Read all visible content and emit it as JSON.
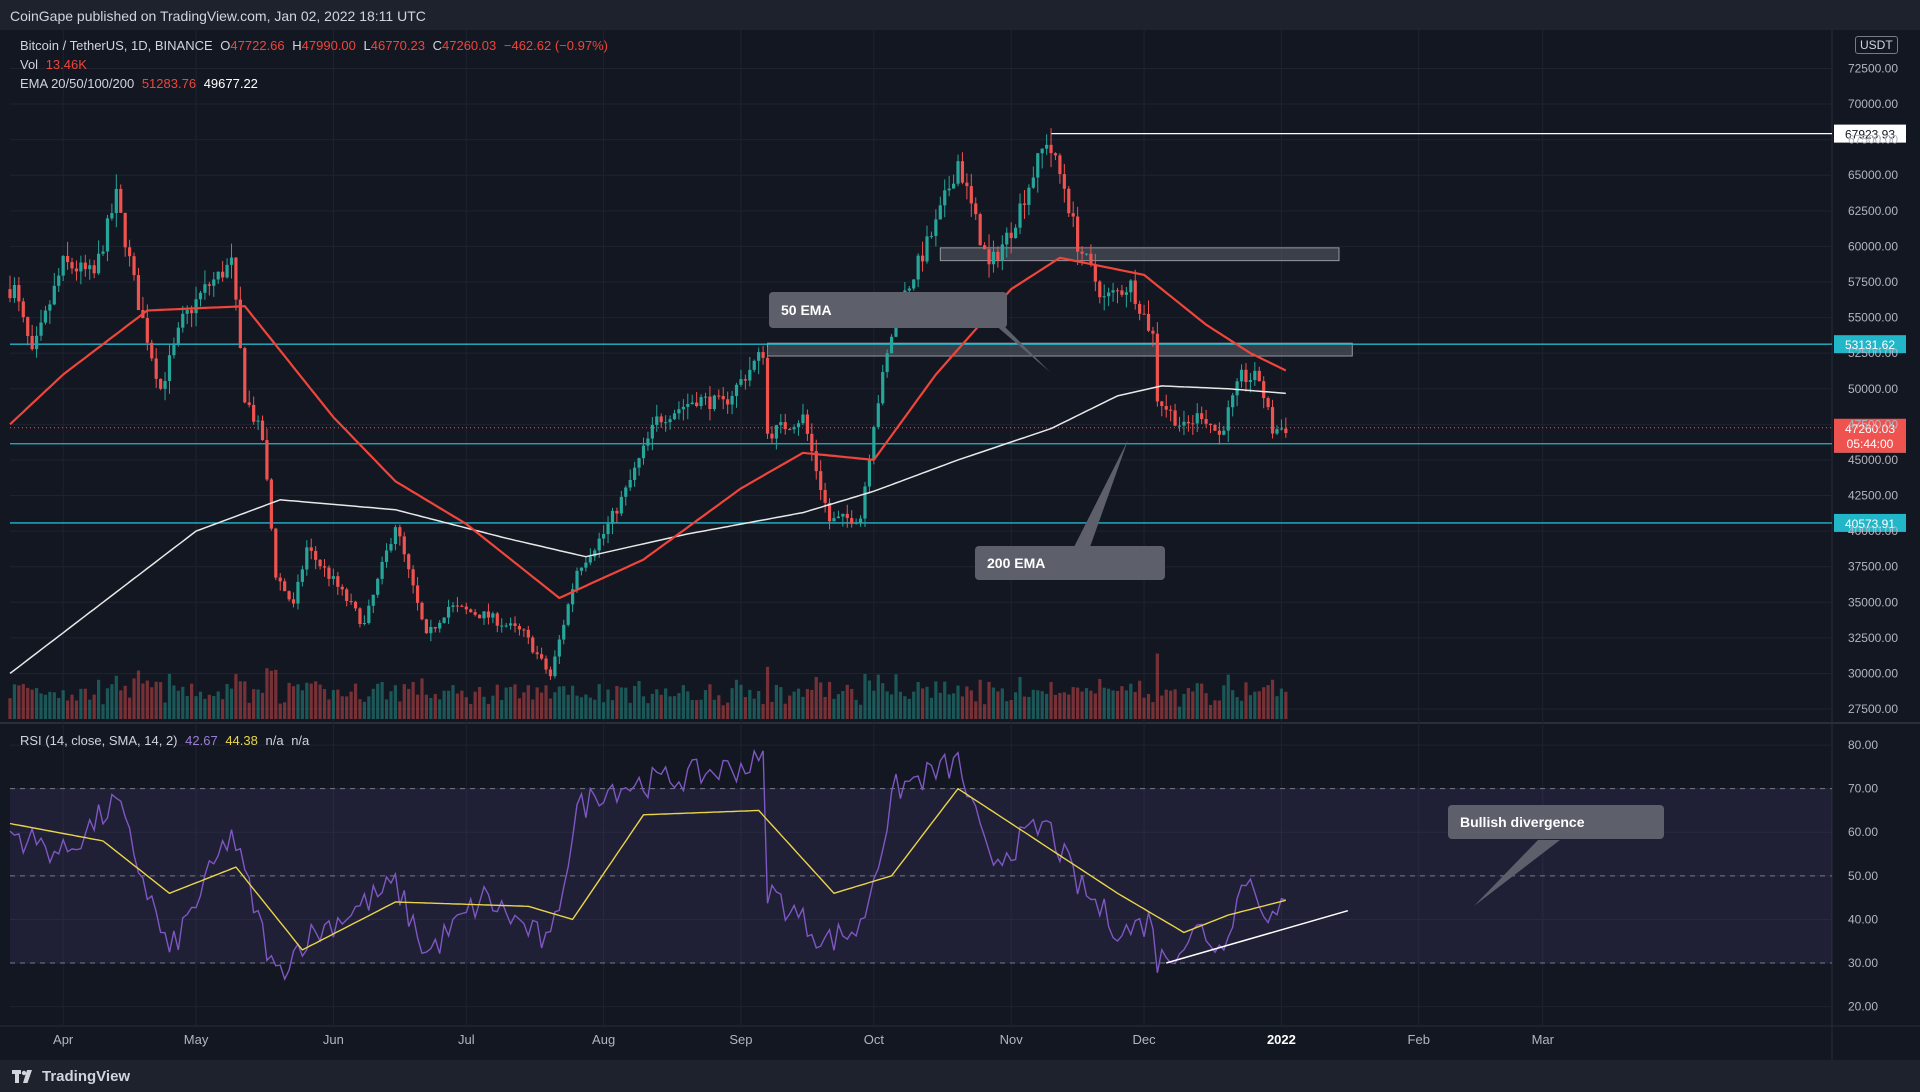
{
  "header": {
    "publish_text": "CoinGape published on TradingView.com, Jan 02, 2022 18:11 UTC"
  },
  "legend": {
    "symbol": "Bitcoin / TetherUS, 1D, BINANCE",
    "o_label": "O",
    "o_value": "47722.66",
    "h_label": "H",
    "h_value": "47990.00",
    "l_label": "L",
    "l_value": "46770.23",
    "c_label": "C",
    "c_value": "47260.03",
    "change": "−462.62 (−0.97%)",
    "vol_label": "Vol",
    "vol_value": "13.46K",
    "ema_label": "EMA 20/50/100/200",
    "ema50_value": "51283.76",
    "ema200_value": "49677.22"
  },
  "rsi_legend": {
    "label": "RSI (14, close, SMA, 14, 2)",
    "rsi_value": "42.67",
    "sma_value": "44.38",
    "na1": "n/a",
    "na2": "n/a"
  },
  "currency": "USDT",
  "callouts": {
    "ema50": "50 EMA",
    "ema200": "200 EMA",
    "divergence": "Bullish divergence"
  },
  "footer": {
    "brand": "TradingView"
  },
  "colors": {
    "background": "#131722",
    "up": "#26a69a",
    "down": "#ef5350",
    "ema50": "#f0453a",
    "ema200": "#e8e8e8",
    "level": "#22b6c9",
    "rsi": "#7e57c2",
    "rsi_sma": "#e9d44b"
  },
  "chart_data": [
    {
      "type": "candlestick",
      "title": "Bitcoin / TetherUS, 1D, BINANCE",
      "x_ticks": [
        "Apr",
        "May",
        "Jun",
        "Jul",
        "Aug",
        "Sep",
        "Oct",
        "Nov",
        "Dec",
        "2022",
        "Feb",
        "Mar"
      ],
      "x_tick_dates": [
        "2021-04-01",
        "2021-05-01",
        "2021-06-01",
        "2021-07-01",
        "2021-08-01",
        "2021-09-01",
        "2021-10-01",
        "2021-11-01",
        "2021-12-01",
        "2022-01-01",
        "2022-02-01",
        "2022-03-01"
      ],
      "y_ticks": [
        27500,
        30000,
        32500,
        35000,
        37500,
        40000,
        42500,
        45000,
        47500,
        50000,
        52500,
        55000,
        57500,
        60000,
        62500,
        65000,
        67500,
        70000,
        72500
      ],
      "ylim": [
        26800,
        74500
      ],
      "close_anchors": [
        [
          "2021-03-21",
          57000
        ],
        [
          "2021-03-25",
          52300
        ],
        [
          "2021-04-01",
          58800
        ],
        [
          "2021-04-08",
          58000
        ],
        [
          "2021-04-13",
          63500
        ],
        [
          "2021-04-18",
          56000
        ],
        [
          "2021-04-23",
          50000
        ],
        [
          "2021-04-28",
          54800
        ],
        [
          "2021-05-03",
          57000
        ],
        [
          "2021-05-09",
          58800
        ],
        [
          "2021-05-12",
          49500
        ],
        [
          "2021-05-16",
          46500
        ],
        [
          "2021-05-19",
          37000
        ],
        [
          "2021-05-23",
          34700
        ],
        [
          "2021-05-26",
          38800
        ],
        [
          "2021-06-01",
          36500
        ],
        [
          "2021-06-08",
          33400
        ],
        [
          "2021-06-15",
          40500
        ],
        [
          "2021-06-22",
          32500
        ],
        [
          "2021-06-27",
          34700
        ],
        [
          "2021-07-06",
          34000
        ],
        [
          "2021-07-14",
          32800
        ],
        [
          "2021-07-20",
          29800
        ],
        [
          "2021-07-26",
          37300
        ],
        [
          "2021-08-01",
          39800
        ],
        [
          "2021-08-06",
          42800
        ],
        [
          "2021-08-13",
          47800
        ],
        [
          "2021-08-22",
          49300
        ],
        [
          "2021-08-28",
          48900
        ],
        [
          "2021-09-06",
          52600
        ],
        [
          "2021-09-07",
          46800
        ],
        [
          "2021-09-15",
          48000
        ],
        [
          "2021-09-21",
          40700
        ],
        [
          "2021-09-28",
          41000
        ],
        [
          "2021-10-01",
          47700
        ],
        [
          "2021-10-06",
          55300
        ],
        [
          "2021-10-15",
          61500
        ],
        [
          "2021-10-20",
          66000
        ],
        [
          "2021-10-27",
          58500
        ],
        [
          "2021-11-01",
          61200
        ],
        [
          "2021-11-09",
          67500
        ],
        [
          "2021-11-13",
          64200
        ],
        [
          "2021-11-16",
          60200
        ],
        [
          "2021-11-22",
          56300
        ],
        [
          "2021-11-28",
          57300
        ],
        [
          "2021-12-03",
          53700
        ],
        [
          "2021-12-04",
          49400
        ],
        [
          "2021-12-10",
          47200
        ],
        [
          "2021-12-14",
          48300
        ],
        [
          "2021-12-18",
          46700
        ],
        [
          "2021-12-23",
          50800
        ],
        [
          "2021-12-27",
          50700
        ],
        [
          "2021-12-30",
          47100
        ],
        [
          "2022-01-02",
          47260
        ]
      ],
      "ema50_anchors": [
        [
          "2021-03-20",
          47500
        ],
        [
          "2021-04-01",
          51000
        ],
        [
          "2021-04-20",
          55500
        ],
        [
          "2021-05-12",
          55800
        ],
        [
          "2021-06-01",
          48000
        ],
        [
          "2021-06-15",
          43500
        ],
        [
          "2021-07-01",
          40500
        ],
        [
          "2021-07-22",
          35300
        ],
        [
          "2021-08-10",
          38000
        ],
        [
          "2021-09-01",
          43000
        ],
        [
          "2021-09-15",
          45500
        ],
        [
          "2021-10-01",
          45000
        ],
        [
          "2021-10-15",
          51000
        ],
        [
          "2021-11-01",
          57000
        ],
        [
          "2021-11-12",
          59200
        ],
        [
          "2021-12-01",
          58000
        ],
        [
          "2021-12-15",
          54500
        ],
        [
          "2021-12-25",
          52500
        ],
        [
          "2022-01-02",
          51284
        ]
      ],
      "ema200_anchors": [
        [
          "2021-03-20",
          30000
        ],
        [
          "2021-04-10",
          35000
        ],
        [
          "2021-05-01",
          40000
        ],
        [
          "2021-05-20",
          42200
        ],
        [
          "2021-06-15",
          41500
        ],
        [
          "2021-07-10",
          39500
        ],
        [
          "2021-07-28",
          38200
        ],
        [
          "2021-08-20",
          39800
        ],
        [
          "2021-09-15",
          41300
        ],
        [
          "2021-10-01",
          42800
        ],
        [
          "2021-10-20",
          45000
        ],
        [
          "2021-11-10",
          47200
        ],
        [
          "2021-11-25",
          49500
        ],
        [
          "2021-12-05",
          50200
        ],
        [
          "2021-12-20",
          50000
        ],
        [
          "2022-01-02",
          49677
        ]
      ],
      "horizontal_levels": [
        {
          "value": 67923.93,
          "label": "67923.93",
          "start": "2021-11-10"
        },
        {
          "value": 53131.62,
          "label": "53131.62"
        },
        {
          "value": 46134.67,
          "label": "46134.67"
        },
        {
          "value": 40573.91,
          "label": "40573.91"
        }
      ],
      "current_price": {
        "value": 47260.03,
        "label": "47260.03",
        "countdown": "05:44:00"
      },
      "zones": [
        {
          "from": "2021-10-16",
          "to": "2022-01-14",
          "low": 59000,
          "high": 59900
        },
        {
          "from": "2021-09-07",
          "to": "2022-01-17",
          "low": 52300,
          "high": 53200
        }
      ]
    },
    {
      "type": "line",
      "title": "RSI (14, close, SMA, 14, 2)",
      "y_ticks": [
        20,
        30,
        40,
        50,
        60,
        70,
        80
      ],
      "ylim": [
        16,
        83
      ],
      "band": [
        30,
        70
      ],
      "rsi_anchors": [
        [
          "2021-03-20",
          60
        ],
        [
          "2021-04-01",
          55
        ],
        [
          "2021-04-13",
          67
        ],
        [
          "2021-04-25",
          32
        ],
        [
          "2021-05-09",
          60
        ],
        [
          "2021-05-19",
          27
        ],
        [
          "2021-05-25",
          35
        ],
        [
          "2021-06-15",
          48
        ],
        [
          "2021-06-22",
          32
        ],
        [
          "2021-07-05",
          45
        ],
        [
          "2021-07-20",
          34
        ],
        [
          "2021-07-26",
          65
        ],
        [
          "2021-08-01",
          70
        ],
        [
          "2021-08-15",
          72
        ],
        [
          "2021-09-06",
          76
        ],
        [
          "2021-09-07",
          47
        ],
        [
          "2021-09-20",
          35
        ],
        [
          "2021-09-28",
          38
        ],
        [
          "2021-10-06",
          70
        ],
        [
          "2021-10-20",
          76
        ],
        [
          "2021-10-27",
          53
        ],
        [
          "2021-11-09",
          62
        ],
        [
          "2021-11-16",
          48
        ],
        [
          "2021-11-26",
          37
        ],
        [
          "2021-12-03",
          40
        ],
        [
          "2021-12-04",
          30
        ],
        [
          "2021-12-14",
          38
        ],
        [
          "2021-12-18",
          33
        ],
        [
          "2021-12-24",
          50
        ],
        [
          "2021-12-30",
          40
        ],
        [
          "2022-01-02",
          42.67
        ]
      ],
      "sma_anchors": [
        [
          "2021-03-20",
          62
        ],
        [
          "2021-04-10",
          58
        ],
        [
          "2021-04-25",
          46
        ],
        [
          "2021-05-10",
          52
        ],
        [
          "2021-05-25",
          33
        ],
        [
          "2021-06-15",
          44
        ],
        [
          "2021-07-15",
          43
        ],
        [
          "2021-07-25",
          40
        ],
        [
          "2021-08-10",
          64
        ],
        [
          "2021-09-05",
          65
        ],
        [
          "2021-09-22",
          46
        ],
        [
          "2021-10-05",
          50
        ],
        [
          "2021-10-20",
          70
        ],
        [
          "2021-11-10",
          56
        ],
        [
          "2021-11-25",
          46
        ],
        [
          "2021-12-10",
          37
        ],
        [
          "2021-12-20",
          41
        ],
        [
          "2022-01-02",
          44.38
        ]
      ],
      "divergence_line": [
        [
          "2021-12-06",
          30
        ],
        [
          "2022-01-16",
          42
        ]
      ]
    }
  ]
}
